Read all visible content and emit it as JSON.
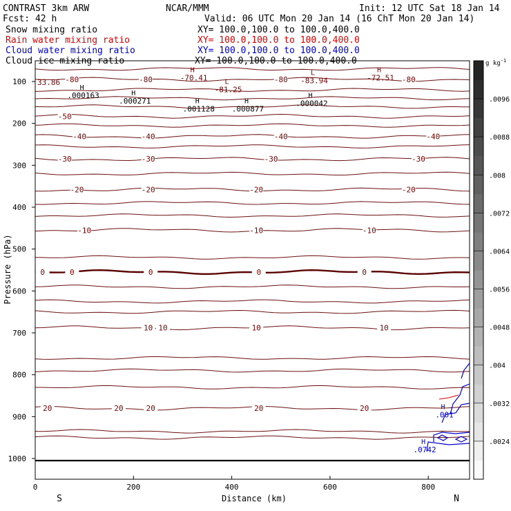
{
  "header": {
    "title_left": "CONTRAST  3km ARW",
    "title_center": "NCAR/MMM",
    "init": "Init: 12 UTC Sat 18 Jan 14",
    "fcst": "Fcst:   42 h",
    "valid": "Valid: 06 UTC Mon 20 Jan 14 (16 ChT Mon 20 Jan 14)"
  },
  "fields": [
    {
      "name": "Snow mixing ratio",
      "xy": "XY= 100.0,100.0 to 100.0,400.0",
      "color": "#000000"
    },
    {
      "name": "Rain water mixing ratio",
      "xy": "XY= 100.0,100.0 to 100.0,400.0",
      "color": "#e00000"
    },
    {
      "name": "Cloud water mixing ratio",
      "xy": "XY= 100.0,100.0 to 100.0,400.0",
      "color": "#0000cc"
    },
    {
      "name": "Cloud ice mixing ratio",
      "xy": "XY= 100.0,100.0 to 100.0,400.0",
      "color": "#000000"
    }
  ],
  "colorbar": {
    "unit": "g kg",
    "unit_exp": "-1",
    "ticks": [
      ".0096",
      ".0088",
      ".008",
      ".0072",
      ".0064",
      ".0056",
      ".0048",
      ".004",
      ".0032",
      ".0024"
    ],
    "tick_values": [
      0.0096,
      0.0088,
      0.008,
      0.0072,
      0.0064,
      0.0056,
      0.0048,
      0.004,
      0.0032,
      0.0024
    ]
  },
  "chart_data": {
    "type": "cross-section contour",
    "xlabel": "Distance (km)",
    "ylabel": "Pressure (hPa)",
    "xlim": [
      0,
      884
    ],
    "ylim": [
      1050,
      20
    ],
    "xticks": [
      0,
      200,
      400,
      600,
      800
    ],
    "yticks": [
      100,
      200,
      300,
      400,
      500,
      600,
      700,
      800,
      900,
      1000
    ],
    "x_end_labels": {
      "left": "S",
      "right": "N"
    },
    "temperature_contours": [
      {
        "level": -80,
        "p": 95,
        "labels": [
          {
            "text": "-80",
            "x": 75
          },
          {
            "text": "-80",
            "x": 225
          },
          {
            "text": "-80",
            "x": 500
          },
          {
            "text": "-80",
            "x": 760
          }
        ]
      },
      {
        "level": -50,
        "p": 183,
        "labels": [
          {
            "text": "-50",
            "x": 60
          }
        ]
      },
      {
        "level": -40,
        "p": 231,
        "labels": [
          {
            "text": "-40",
            "x": 90
          },
          {
            "text": "-40",
            "x": 230
          },
          {
            "text": "-40",
            "x": 500
          },
          {
            "text": "-40",
            "x": 810
          }
        ]
      },
      {
        "level": -30,
        "p": 285,
        "labels": [
          {
            "text": "-30",
            "x": 60
          },
          {
            "text": "-30",
            "x": 230
          },
          {
            "text": "-30",
            "x": 480
          },
          {
            "text": "-30",
            "x": 780
          }
        ]
      },
      {
        "level": -20,
        "p": 358,
        "labels": [
          {
            "text": "-20",
            "x": 85
          },
          {
            "text": "-20",
            "x": 230
          },
          {
            "text": "-20",
            "x": 450
          },
          {
            "text": "-20",
            "x": 760
          }
        ]
      },
      {
        "level": -10,
        "p": 455,
        "labels": [
          {
            "text": "-10",
            "x": 100
          },
          {
            "text": "-10",
            "x": 450
          },
          {
            "text": "-10",
            "x": 680
          }
        ]
      },
      {
        "level": 0,
        "p": 555,
        "labels": [
          {
            "text": "0",
            "x": 15
          },
          {
            "text": "0",
            "x": 75
          },
          {
            "text": "0",
            "x": 235
          },
          {
            "text": "0",
            "x": 455
          },
          {
            "text": "0",
            "x": 670
          }
        ]
      },
      {
        "level": 10,
        "p": 688,
        "labels": [
          {
            "text": "10",
            "x": 230
          },
          {
            "text": "10",
            "x": 260
          },
          {
            "text": "10",
            "x": 450
          },
          {
            "text": "10",
            "x": 710
          }
        ]
      },
      {
        "level": 20,
        "p": 880,
        "labels": [
          {
            "text": "20",
            "x": 25
          },
          {
            "text": "20",
            "x": 170
          },
          {
            "text": "20",
            "x": 235
          },
          {
            "text": "20",
            "x": 455
          },
          {
            "text": "20",
            "x": 670
          }
        ]
      }
    ],
    "extrema": [
      {
        "kind": "H",
        "value": "-70.41",
        "x": 320,
        "p": 78
      },
      {
        "kind": "L",
        "value": "-81.25",
        "x": 390,
        "p": 106
      },
      {
        "kind": "L",
        "value": "-83.94",
        "x": 565,
        "p": 84
      },
      {
        "kind": "H",
        "value": "-72.51",
        "x": 700,
        "p": 78
      },
      {
        "kind": "H",
        "value": ".000163",
        "x": 95,
        "p": 120
      },
      {
        "kind": "H",
        "value": ".000271",
        "x": 200,
        "p": 133
      },
      {
        "kind": "H",
        "value": ".001128",
        "x": 330,
        "p": 152
      },
      {
        "kind": "H",
        "value": ".000877",
        "x": 430,
        "p": 152
      },
      {
        "kind": "H",
        "value": ".000042",
        "x": 560,
        "p": 139
      },
      {
        "kind": "H",
        "value": ".001",
        "x": 830,
        "p": 882
      },
      {
        "kind": "H",
        "value": ".0742",
        "x": 790,
        "p": 965
      }
    ],
    "left_edge_value": "33.86"
  }
}
